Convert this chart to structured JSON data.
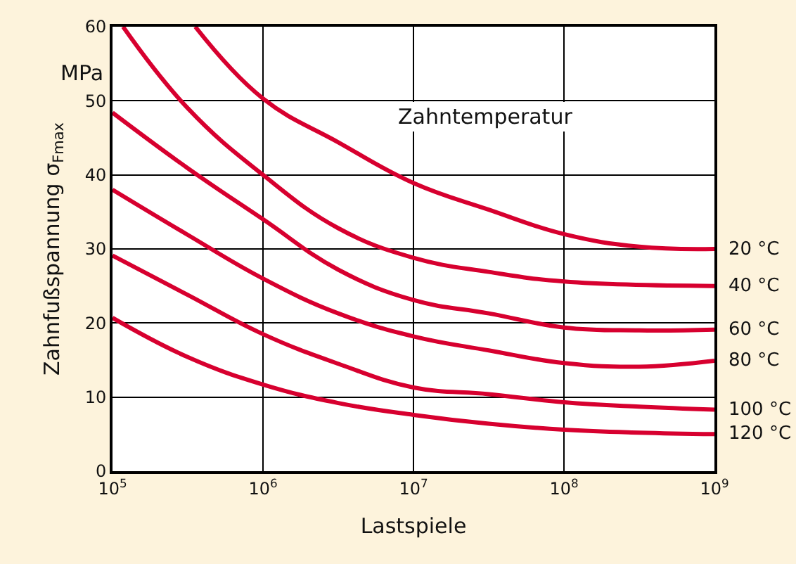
{
  "chart_data": {
    "type": "line",
    "xlabel": "Lastspiele",
    "ylabel": "Zahnfußspannung σ$_{Fmax}$",
    "log": "x",
    "grid": true,
    "legend": false,
    "marker": "none",
    "line_style": "solid",
    "xlim": [
      100000,
      1000000000
    ],
    "ylim": [
      0,
      60
    ],
    "xticks": [
      {
        "value": 100000,
        "label": "10$^{5}$"
      },
      {
        "value": 1000000,
        "label": "10$^{6}$"
      },
      {
        "value": 10000000,
        "label": "10$^{7}$"
      },
      {
        "value": 100000000,
        "label": "10$^{8}$"
      },
      {
        "value": 1000000000,
        "label": "10$^{9}$"
      }
    ],
    "yticks": [
      0,
      10,
      20,
      30,
      40,
      50,
      60
    ],
    "annotations": [
      "Zahntemperatur",
      "MPa"
    ],
    "series": [
      {
        "name": "20 °C",
        "color": "#d7002f",
        "x": [
          354813,
          1000000,
          3162278,
          10000000,
          31622777,
          100000000,
          316227766,
          1000000000
        ],
        "values": [
          60,
          50.3,
          44.4,
          38.9,
          35.3,
          32.0,
          30.3,
          30.0
        ]
      },
      {
        "name": "40 °C",
        "color": "#d7002f",
        "x": [
          117490,
          316228,
          1000000,
          3162278,
          10000000,
          31622777,
          100000000,
          1000000000
        ],
        "values": [
          60,
          49,
          40,
          32.8,
          28.8,
          26.9,
          25.6,
          25.0
        ]
      },
      {
        "name": "60 °C",
        "color": "#d7002f",
        "x": [
          100000,
          316228,
          1000000,
          3162278,
          10000000,
          31622777,
          100000000,
          316227766,
          1000000000
        ],
        "values": [
          48.4,
          40.9,
          34,
          27.2,
          23.1,
          21.3,
          19.4,
          19.0,
          19.1
        ]
      },
      {
        "name": "80 °C",
        "color": "#d7002f",
        "x": [
          100000,
          316228,
          1000000,
          3162278,
          10000000,
          31622777,
          100000000,
          316227766,
          1000000000
        ],
        "values": [
          38.0,
          31.9,
          26.0,
          21.3,
          18.2,
          16.3,
          14.6,
          14.1,
          14.9
        ]
      },
      {
        "name": "100 °C",
        "color": "#d7002f",
        "x": [
          100000,
          316228,
          1000000,
          3162278,
          10000000,
          31622777,
          100000000,
          316227766,
          1000000000
        ],
        "values": [
          29.1,
          23.8,
          18.5,
          14.5,
          11.3,
          10.4,
          9.3,
          8.7,
          8.3
        ]
      },
      {
        "name": "120 °C",
        "color": "#d7002f",
        "x": [
          100000,
          316228,
          1000000,
          3162278,
          10000000,
          31622777,
          100000000,
          316227766,
          1000000000
        ],
        "values": [
          20.7,
          15.4,
          11.7,
          9.2,
          7.6,
          6.4,
          5.6,
          5.2,
          5.0
        ]
      }
    ]
  }
}
